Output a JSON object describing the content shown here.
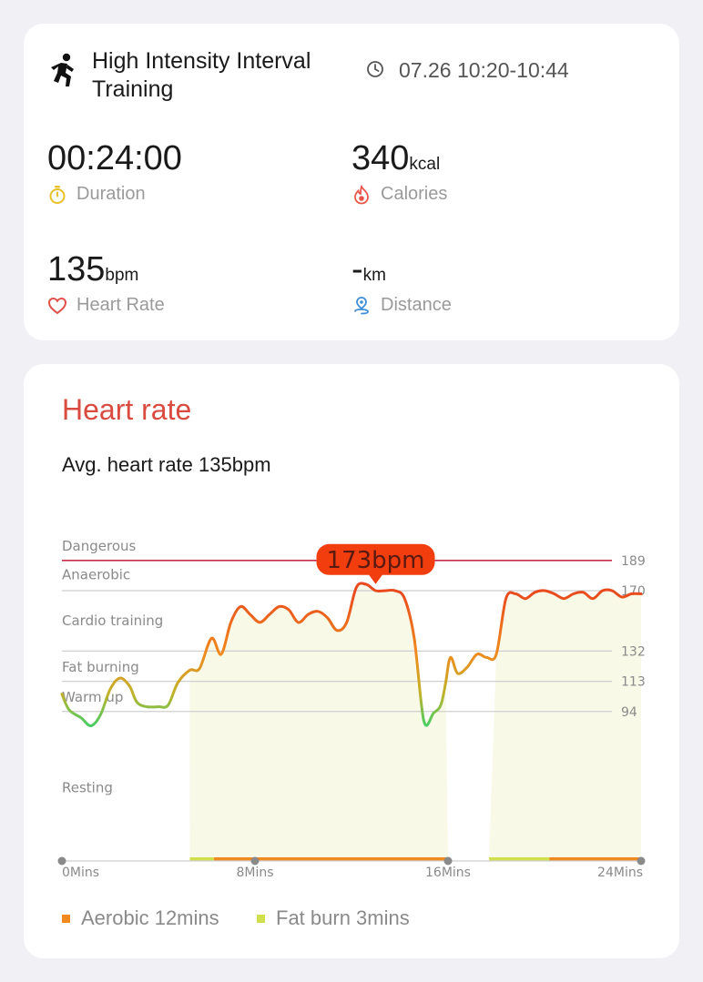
{
  "workout": {
    "title": "High Intensity Interval Training",
    "time_range": "07.26 10:20-10:44"
  },
  "metrics": {
    "duration": {
      "value": "00:24:00",
      "unit": "",
      "label": "Duration",
      "icon": "stopwatch-icon"
    },
    "calories": {
      "value": "340",
      "unit": "kcal",
      "label": "Calories",
      "icon": "flame-icon"
    },
    "heart_rate": {
      "value": "135",
      "unit": "bpm",
      "label": "Heart Rate",
      "icon": "heart-icon"
    },
    "distance": {
      "value": "-",
      "unit": "km",
      "label": "Distance",
      "icon": "location-pin-icon"
    }
  },
  "heart_rate_section": {
    "title": "Heart rate",
    "avg_text": "Avg. heart rate 135bpm",
    "peak_label": "173bpm"
  },
  "legend": {
    "aerobic": {
      "label": "Aerobic 12mins",
      "color": "#f08a1e"
    },
    "fat_burn": {
      "label": "Fat burn 3mins",
      "color": "#cfe04a"
    }
  },
  "colors": {
    "title_red": "#d94a3f",
    "dangerous": "#c8304a",
    "peak_bubble": "#f23e0f",
    "shade": "#f8f9e6"
  },
  "chart_data": {
    "type": "line",
    "x_unit": "Mins",
    "xlim": [
      0,
      24
    ],
    "x_ticks": [
      {
        "value": 0,
        "label": "0Mins"
      },
      {
        "value": 8,
        "label": "8Mins"
      },
      {
        "value": 16,
        "label": "16Mins"
      },
      {
        "value": 24,
        "label": "24Mins"
      }
    ],
    "zones": [
      {
        "name": "Dangerous",
        "threshold": 189,
        "name_value": 198
      },
      {
        "name": "Anaerobic",
        "threshold": 170,
        "name_value": 180
      },
      {
        "name": "Cardio training",
        "threshold": 132,
        "name_value": 151
      },
      {
        "name": "Fat burning",
        "threshold": 113,
        "name_value": 122
      },
      {
        "name": "Warm up",
        "threshold": 94,
        "name_value": 103
      },
      {
        "name": "Resting",
        "threshold": null,
        "name_value": 46
      }
    ],
    "resting_floor": 0,
    "series": [
      {
        "x": [
          0,
          0.3,
          0.8,
          1.2,
          1.6,
          2.0,
          2.4,
          2.8,
          3.1,
          3.5,
          4.0,
          4.4,
          4.8,
          5.3,
          5.7,
          6.2,
          6.6,
          7.0,
          7.4,
          7.8,
          8.2,
          8.6,
          9.0,
          9.4,
          9.8,
          10.2,
          10.6,
          11.0,
          11.4,
          11.8,
          12.2,
          12.6,
          13.0,
          13.4,
          13.8,
          14.2,
          14.6,
          15.0,
          15.4,
          15.7,
          15.9,
          16.1,
          16.4,
          16.8,
          17.2,
          17.6,
          18.0,
          18.4,
          18.8,
          19.2,
          19.6,
          20.0,
          20.4,
          20.8,
          21.2,
          21.6,
          22.0,
          22.4,
          22.8,
          23.2,
          23.6,
          24.0
        ],
        "y": [
          105,
          95,
          90,
          85,
          92,
          108,
          115,
          110,
          100,
          97,
          97,
          98,
          112,
          120,
          121,
          140,
          130,
          150,
          160,
          155,
          150,
          155,
          160,
          158,
          150,
          155,
          157,
          153,
          145,
          150,
          172,
          174,
          170,
          170,
          170,
          165,
          140,
          88,
          93,
          98,
          112,
          128,
          118,
          122,
          130,
          128,
          130,
          165,
          168,
          165,
          169,
          170,
          168,
          165,
          168,
          169,
          165,
          170,
          170,
          166,
          168,
          168
        ]
      }
    ],
    "peak": {
      "x": 13.0,
      "y": 173
    },
    "zone_bands": [
      {
        "start": 5.3,
        "end": 6.3,
        "type": "fat_burn"
      },
      {
        "start": 6.3,
        "end": 16.0,
        "type": "aerobic"
      },
      {
        "start": 17.7,
        "end": 20.2,
        "type": "fat_burn"
      },
      {
        "start": 20.2,
        "end": 24.0,
        "type": "aerobic"
      }
    ],
    "shaded_regions": [
      {
        "start": 5.3,
        "end": 16.0
      },
      {
        "start": 17.7,
        "end": 24.0
      }
    ]
  }
}
